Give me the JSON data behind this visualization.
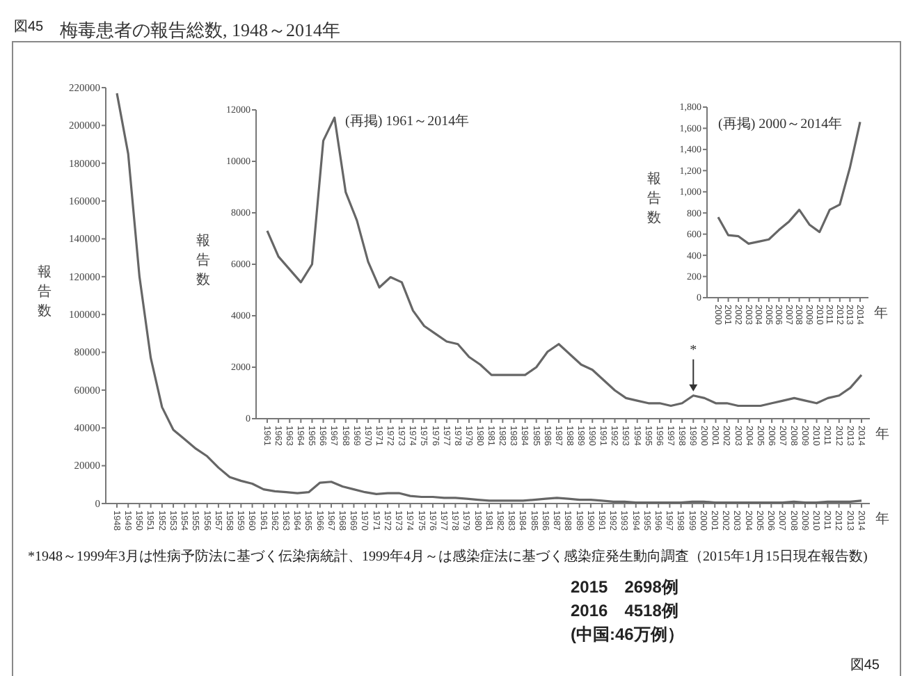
{
  "chart_data": [
    {
      "type": "line",
      "title": "梅毒患者の報告総数, 1948～2014年",
      "ylabel": "報告数",
      "xlabel": "年",
      "color": "#666666",
      "categories": [
        "1948",
        "1949",
        "1950",
        "1951",
        "1952",
        "1953",
        "1954",
        "1955",
        "1956",
        "1957",
        "1958",
        "1959",
        "1960",
        "1961",
        "1962",
        "1963",
        "1964",
        "1965",
        "1966",
        "1967",
        "1968",
        "1969",
        "1970",
        "1971",
        "1972",
        "1973",
        "1974",
        "1975",
        "1976",
        "1977",
        "1978",
        "1979",
        "1980",
        "1981",
        "1982",
        "1983",
        "1984",
        "1985",
        "1986",
        "1987",
        "1988",
        "1989",
        "1990",
        "1991",
        "1992",
        "1993",
        "1994",
        "1995",
        "1996",
        "1997",
        "1998",
        "1999",
        "2000",
        "2001",
        "2002",
        "2003",
        "2004",
        "2005",
        "2006",
        "2007",
        "2008",
        "2009",
        "2010",
        "2011",
        "2012",
        "2013",
        "2014"
      ],
      "values": [
        217000,
        185000,
        120000,
        77000,
        51000,
        39000,
        34000,
        29000,
        25000,
        19000,
        14000,
        12000,
        10500,
        7500,
        6500,
        6000,
        5500,
        6000,
        11000,
        11500,
        9000,
        7500,
        6000,
        5000,
        5500,
        5500,
        4000,
        3500,
        3500,
        3000,
        3000,
        2500,
        2000,
        1500,
        1500,
        1500,
        1500,
        2000,
        2500,
        3000,
        2500,
        2000,
        2000,
        1500,
        1000,
        1000,
        500,
        500,
        500,
        500,
        500,
        1000,
        1000,
        500,
        500,
        500,
        500,
        500,
        500,
        500,
        1000,
        500,
        500,
        1000,
        1000,
        1000,
        1500
      ],
      "ylim": [
        0,
        220000
      ],
      "yticks": [
        0,
        20000,
        40000,
        60000,
        80000,
        100000,
        120000,
        140000,
        160000,
        180000,
        200000,
        220000
      ],
      "annotations": [
        "*1948～1999年3月は性病予防法に基づく伝染病統計、1999年4月～は感染症法に基づく感染症発生動向調査（2015年1月15日現在報告数)",
        "2015　2698例",
        "2016　4518例",
        "(中国:46万例）",
        "図45",
        "図45"
      ]
    },
    {
      "type": "line",
      "title": "(再掲) 1961～2014年",
      "ylabel": "報告数",
      "xlabel": "年",
      "color": "#666666",
      "categories": [
        "1961",
        "1962",
        "1963",
        "1964",
        "1965",
        "1966",
        "1967",
        "1968",
        "1969",
        "1970",
        "1971",
        "1972",
        "1973",
        "1974",
        "1975",
        "1976",
        "1977",
        "1978",
        "1979",
        "1980",
        "1981",
        "1982",
        "1983",
        "1984",
        "1985",
        "1986",
        "1987",
        "1988",
        "1989",
        "1990",
        "1991",
        "1992",
        "1993",
        "1994",
        "1995",
        "1996",
        "1997",
        "1998",
        "1999",
        "2000",
        "2001",
        "2002",
        "2003",
        "2004",
        "2005",
        "2006",
        "2007",
        "2008",
        "2009",
        "2010",
        "2011",
        "2012",
        "2013",
        "2014"
      ],
      "values": [
        7300,
        6300,
        5800,
        5300,
        6000,
        10800,
        11700,
        8800,
        7700,
        6100,
        5100,
        5500,
        5300,
        4200,
        3600,
        3300,
        3000,
        2900,
        2400,
        2100,
        1700,
        1700,
        1700,
        1700,
        2000,
        2600,
        2900,
        2500,
        2100,
        1900,
        1500,
        1100,
        800,
        700,
        600,
        600,
        500,
        600,
        900,
        800,
        600,
        600,
        500,
        500,
        500,
        600,
        700,
        800,
        700,
        600,
        800,
        900,
        1200,
        1700
      ],
      "ylim": [
        0,
        12000
      ],
      "yticks": [
        0,
        2000,
        4000,
        6000,
        8000,
        10000,
        12000
      ],
      "annotations": [
        {
          "text": "*",
          "x": "1999",
          "y": 900
        }
      ]
    },
    {
      "type": "line",
      "title": "(再掲) 2000～2014年",
      "ylabel": "報告数",
      "xlabel": "年",
      "color": "#666666",
      "categories": [
        "2000",
        "2001",
        "2002",
        "2003",
        "2004",
        "2005",
        "2006",
        "2007",
        "2008",
        "2009",
        "2010",
        "2011",
        "2012",
        "2013",
        "2014"
      ],
      "values": [
        760,
        590,
        580,
        510,
        530,
        550,
        640,
        720,
        830,
        690,
        620,
        830,
        880,
        1230,
        1660
      ],
      "ylim": [
        0,
        1800
      ],
      "yticks": [
        0,
        200,
        400,
        600,
        800,
        {
          "value": 1000,
          "label": "1,000"
        },
        {
          "value": 1200,
          "label": "1,200"
        },
        {
          "value": 1400,
          "label": "1,400"
        },
        {
          "value": 1600,
          "label": "1,600"
        },
        {
          "value": 1800,
          "label": "1,800"
        }
      ]
    }
  ]
}
